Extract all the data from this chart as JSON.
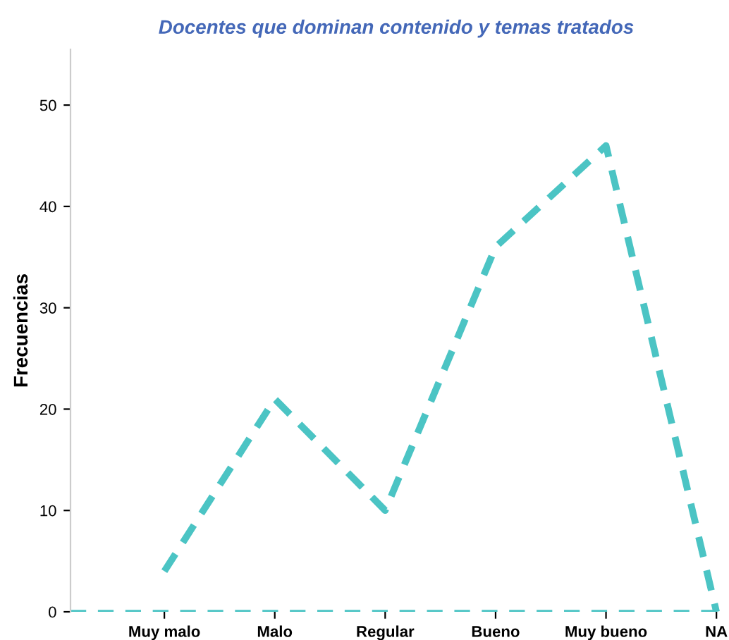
{
  "chart_data": {
    "type": "line",
    "ref_lines": [
      {
        "axis": "y",
        "value": 0,
        "color": "#4bc4c4",
        "line_style": "dashed"
      }
    ],
    "title": "Docentes que dominan contenido y temas tratados",
    "ylabel": "Frecuencias",
    "categories": [
      "Muy malo",
      "Malo",
      "Regular",
      "Bueno",
      "Muy bueno",
      "NA"
    ],
    "series": [
      {
        "color": "#4bc4c4",
        "values": [
          4,
          21,
          10,
          36,
          46,
          0
        ]
      }
    ],
    "ylim": [
      0,
      55.5
    ],
    "yticks": [
      0,
      10,
      20,
      30,
      40,
      50
    ],
    "grid": false,
    "legend": false,
    "line_style": "dashed"
  }
}
